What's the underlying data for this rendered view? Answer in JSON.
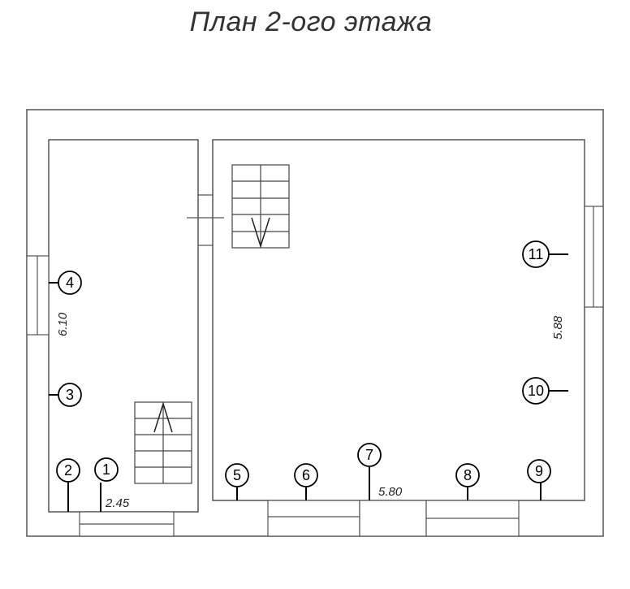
{
  "plan": {
    "title": "План 2-ого  этажа",
    "dimensions": {
      "left_room_height": "6.10",
      "left_room_width": "2.45",
      "right_room_height": "5.88",
      "right_room_width": "5.80"
    },
    "markers": [
      "1",
      "2",
      "3",
      "4",
      "5",
      "6",
      "7",
      "8",
      "9",
      "10",
      "11"
    ],
    "stairs": [
      {
        "name": "upper-stair",
        "direction": "down"
      },
      {
        "name": "lower-stair",
        "direction": "up"
      }
    ]
  }
}
